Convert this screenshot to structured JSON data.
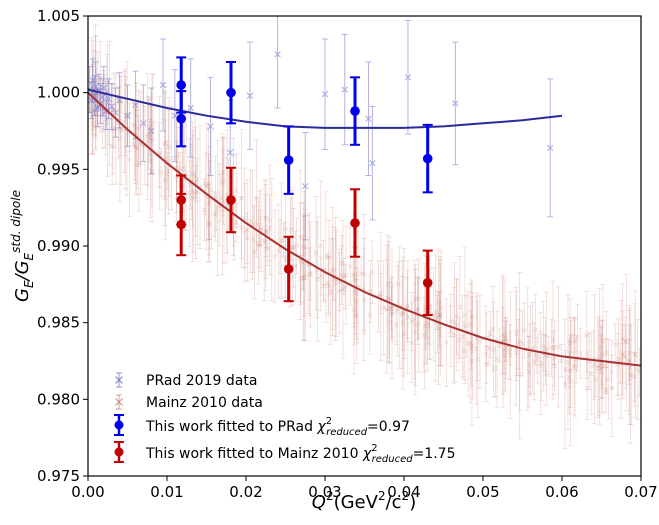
{
  "chart_data": {
    "type": "scatter",
    "xlabel": {
      "base": "Q",
      "sup": "2",
      "unit_open": "(GeV",
      "unit_sup": "2",
      "unit_mid": "/c",
      "unit_sup2": "2",
      "unit_close": ")"
    },
    "ylabel": {
      "base": "G",
      "sub": "E",
      "slash": "/G",
      "sub2": "E",
      "sup2": "std. dipole"
    },
    "xlim": [
      0.0,
      0.07
    ],
    "ylim": [
      0.975,
      1.005
    ],
    "x_ticks": [
      "0.00",
      "0.01",
      "0.02",
      "0.03",
      "0.04",
      "0.05",
      "0.06",
      "0.07"
    ],
    "y_ticks": [
      "0.975",
      "0.980",
      "0.985",
      "0.990",
      "0.995",
      "1.000",
      "1.005"
    ],
    "legend_placement": "lower-left",
    "legend": [
      {
        "label": "PRad 2019 data",
        "series": "prad"
      },
      {
        "label": "Mainz 2010 data",
        "series": "mainz"
      },
      {
        "label": "This work fitted to PRad",
        "chi_symbol": "χ",
        "chi_sup": "2",
        "chi_sub": "reduced",
        "chi_value": "=0.97",
        "series": "fit_prad"
      },
      {
        "label": "This work fitted to Mainz 2010",
        "chi_symbol": "χ",
        "chi_sup": "2",
        "chi_sub": "reduced",
        "chi_value": "=1.75",
        "series": "fit_mainz"
      }
    ],
    "colors": {
      "prad": "#6a6ac8",
      "mainz": "#c77a70",
      "fit_prad": "#0000ee",
      "fit_mainz": "#c00000",
      "curve_prad": "#2b2b9e",
      "curve_mainz": "#a83232"
    },
    "series": [
      {
        "key": "prad",
        "marker": "x",
        "points": [
          {
            "x": 0.0002,
            "y": 1.0002,
            "err": 0.0015
          },
          {
            "x": 0.0004,
            "y": 0.9995,
            "err": 0.0012
          },
          {
            "x": 0.0006,
            "y": 1.0008,
            "err": 0.0014
          },
          {
            "x": 0.0008,
            "y": 0.9998,
            "err": 0.0013
          },
          {
            "x": 0.001,
            "y": 1.0004,
            "err": 0.0016
          },
          {
            "x": 0.0012,
            "y": 0.999,
            "err": 0.0012
          },
          {
            "x": 0.0014,
            "y": 1.0001,
            "err": 0.0011
          },
          {
            "x": 0.0016,
            "y": 0.9993,
            "err": 0.0013
          },
          {
            "x": 0.0018,
            "y": 0.9997,
            "err": 0.0012
          },
          {
            "x": 0.002,
            "y": 1.0003,
            "err": 0.0014
          },
          {
            "x": 0.0023,
            "y": 0.9988,
            "err": 0.0012
          },
          {
            "x": 0.0026,
            "y": 0.9996,
            "err": 0.0013
          },
          {
            "x": 0.003,
            "y": 0.9991,
            "err": 0.0015
          },
          {
            "x": 0.0035,
            "y": 0.9987,
            "err": 0.0016
          },
          {
            "x": 0.004,
            "y": 0.9995,
            "err": 0.0018
          },
          {
            "x": 0.005,
            "y": 0.9985,
            "err": 0.002
          },
          {
            "x": 0.006,
            "y": 0.9992,
            "err": 0.0022
          },
          {
            "x": 0.007,
            "y": 0.998,
            "err": 0.0025
          },
          {
            "x": 0.008,
            "y": 0.9975,
            "err": 0.0028
          },
          {
            "x": 0.0095,
            "y": 1.0005,
            "err": 0.003
          },
          {
            "x": 0.011,
            "y": 0.9985,
            "err": 0.003
          },
          {
            "x": 0.013,
            "y": 0.999,
            "err": 0.0032
          },
          {
            "x": 0.0155,
            "y": 0.9978,
            "err": 0.0032
          },
          {
            "x": 0.018,
            "y": 0.9961,
            "err": 0.0034
          },
          {
            "x": 0.0205,
            "y": 0.9998,
            "err": 0.0035
          },
          {
            "x": 0.024,
            "y": 1.0025,
            "err": 0.0035
          },
          {
            "x": 0.0275,
            "y": 0.9939,
            "err": 0.0035
          },
          {
            "x": 0.03,
            "y": 0.9999,
            "err": 0.0036
          },
          {
            "x": 0.0325,
            "y": 1.0002,
            "err": 0.0036
          },
          {
            "x": 0.0355,
            "y": 0.9983,
            "err": 0.0037
          },
          {
            "x": 0.036,
            "y": 0.9954,
            "err": 0.0037
          },
          {
            "x": 0.0405,
            "y": 1.001,
            "err": 0.0037
          },
          {
            "x": 0.0465,
            "y": 0.9993,
            "err": 0.004
          },
          {
            "x": 0.0585,
            "y": 0.9964,
            "err": 0.0045
          }
        ]
      },
      {
        "key": "fit_prad",
        "marker": "circle",
        "points": [
          {
            "x": 0.0118,
            "y": 1.0005,
            "err": 0.0018
          },
          {
            "x": 0.0118,
            "y": 0.9983,
            "err": 0.0018
          },
          {
            "x": 0.0181,
            "y": 1.0,
            "err": 0.002
          },
          {
            "x": 0.0254,
            "y": 0.9956,
            "err": 0.0022
          },
          {
            "x": 0.0338,
            "y": 0.9988,
            "err": 0.0022
          },
          {
            "x": 0.043,
            "y": 0.9957,
            "err": 0.0022
          }
        ]
      },
      {
        "key": "fit_mainz",
        "marker": "circle",
        "points": [
          {
            "x": 0.0118,
            "y": 0.993,
            "err": 0.0016
          },
          {
            "x": 0.0118,
            "y": 0.9914,
            "err": 0.002
          },
          {
            "x": 0.0181,
            "y": 0.993,
            "err": 0.0021
          },
          {
            "x": 0.0254,
            "y": 0.9885,
            "err": 0.0021
          },
          {
            "x": 0.0338,
            "y": 0.9915,
            "err": 0.0022
          },
          {
            "x": 0.043,
            "y": 0.9876,
            "err": 0.0021
          }
        ]
      }
    ],
    "mainz_cloud": {
      "x_range": [
        0.0005,
        0.07
      ],
      "count": 420,
      "spread": 0.0025,
      "err_range": [
        0.001,
        0.0045
      ]
    },
    "curves": [
      {
        "key": "curve_prad",
        "x": [
          0.0,
          0.005,
          0.01,
          0.015,
          0.02,
          0.025,
          0.03,
          0.035,
          0.04,
          0.045,
          0.05,
          0.055,
          0.06
        ],
        "y": [
          1.0002,
          0.9996,
          0.999,
          0.9985,
          0.9981,
          0.9978,
          0.9977,
          0.9977,
          0.9977,
          0.9978,
          0.998,
          0.9982,
          0.9985
        ]
      },
      {
        "key": "curve_mainz",
        "x": [
          0.0,
          0.005,
          0.01,
          0.015,
          0.02,
          0.025,
          0.03,
          0.035,
          0.04,
          0.045,
          0.05,
          0.055,
          0.06,
          0.065,
          0.07
        ],
        "y": [
          1.0,
          0.9976,
          0.9954,
          0.9934,
          0.9915,
          0.9898,
          0.9883,
          0.987,
          0.9859,
          0.9849,
          0.984,
          0.9833,
          0.9828,
          0.9825,
          0.9822
        ]
      }
    ]
  }
}
